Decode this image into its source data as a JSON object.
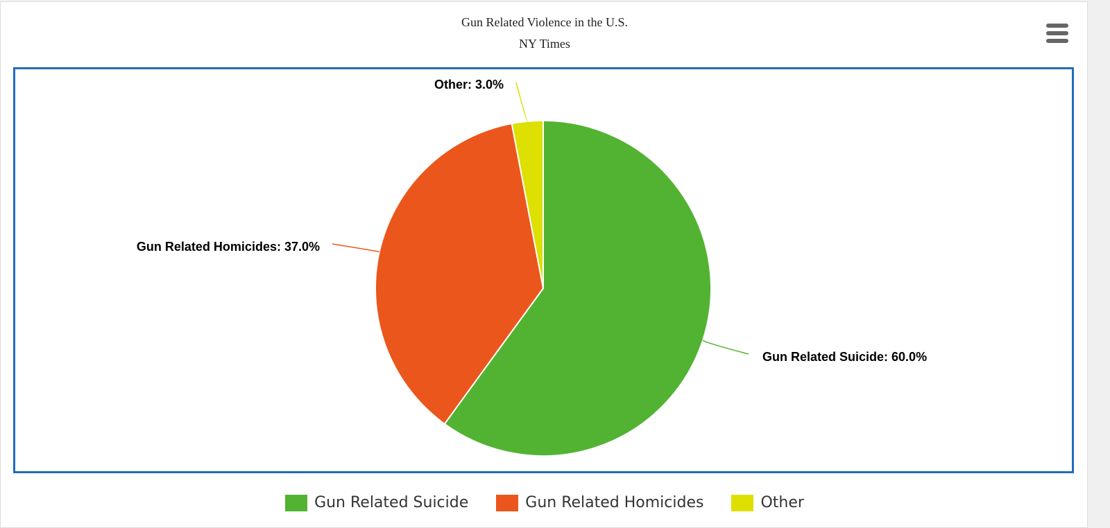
{
  "chart_data": {
    "type": "pie",
    "title": "Gun Related Violence in the U.S.",
    "subtitle": "NY Times",
    "slices": [
      {
        "name": "Gun Related Suicide",
        "value": 60.0,
        "label": "Gun Related Suicide: 60.0%",
        "color": "#52b332"
      },
      {
        "name": "Gun Related Homicides",
        "value": 37.0,
        "label": "Gun Related Homicides: 37.0%",
        "color": "#eb561c"
      },
      {
        "name": "Other",
        "value": 3.0,
        "label": "Other: 3.0%",
        "color": "#dde000"
      }
    ],
    "legend_placement": "bottom-center"
  },
  "menu": {
    "icon": "hamburger-menu-icon"
  },
  "colors": {
    "plot_border": "#1f6dbb"
  }
}
